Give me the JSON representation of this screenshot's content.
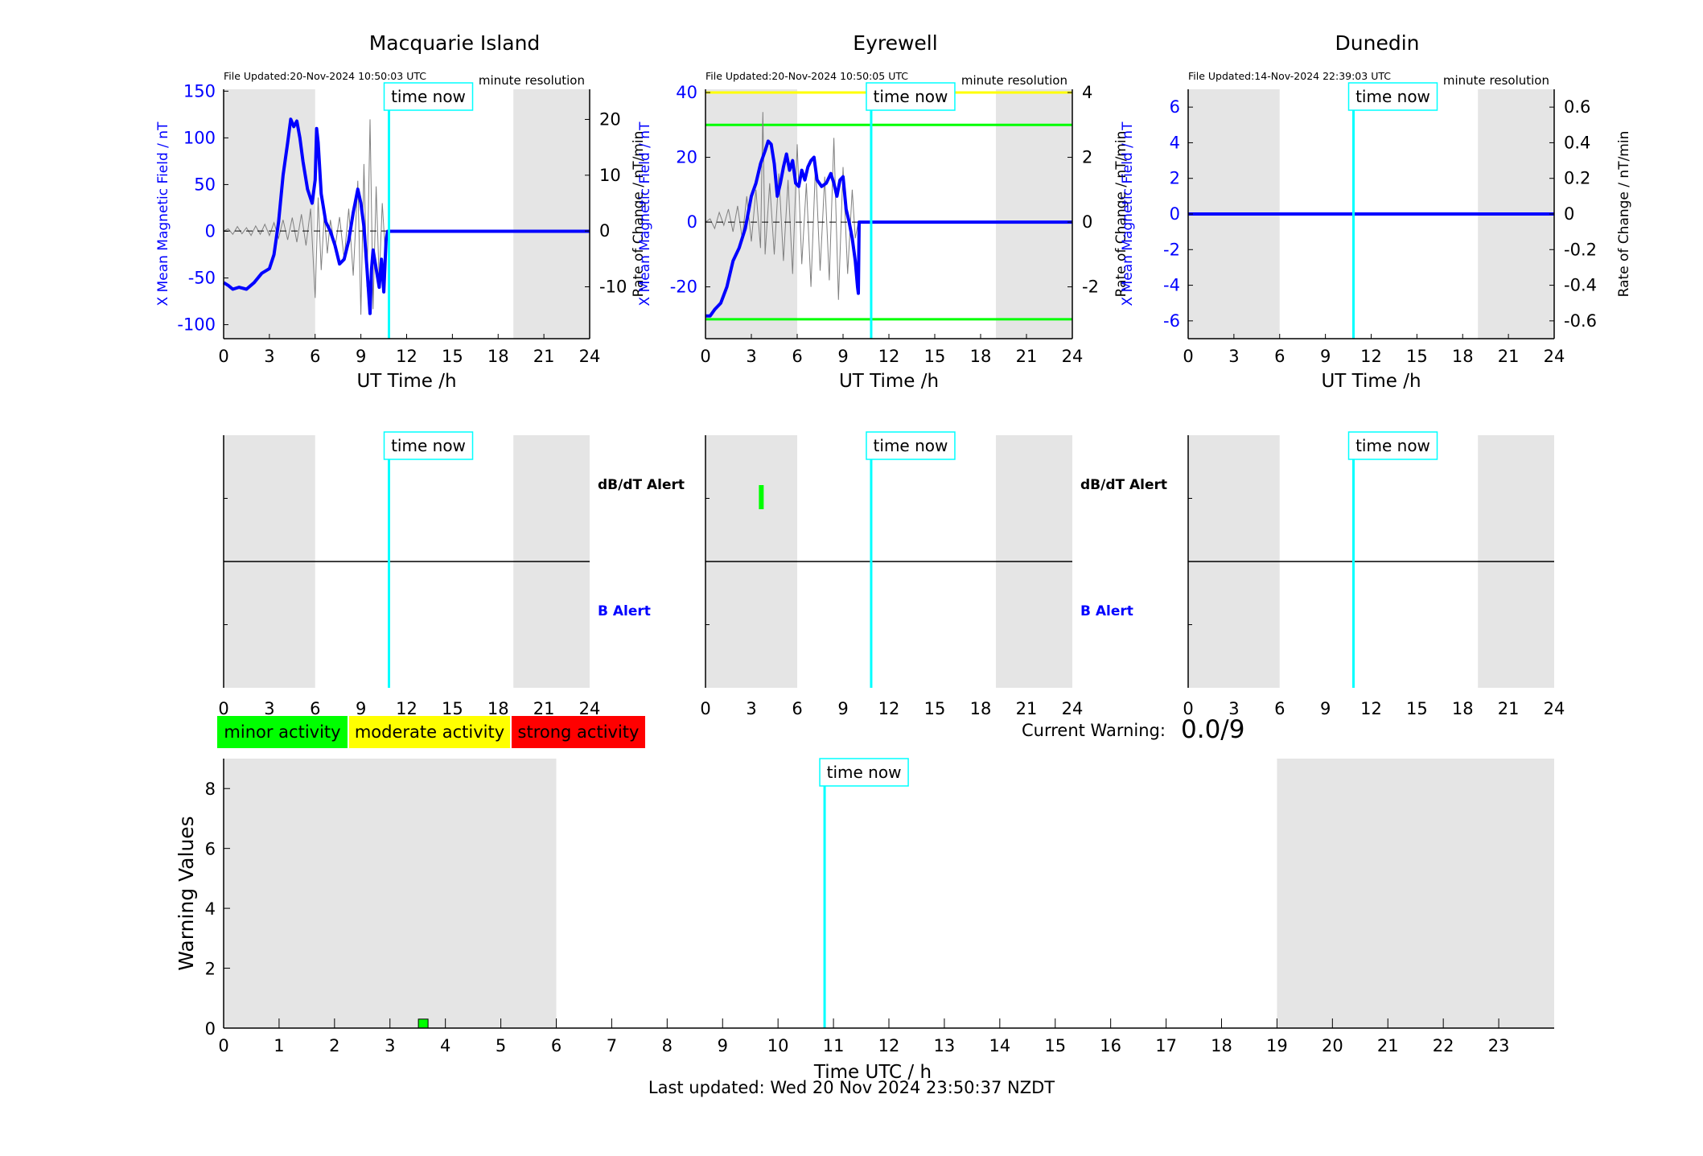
{
  "colors": {
    "night_shade": "#e5e5e5",
    "time_now_line": "#00ffff",
    "field_line": "#0000ff",
    "rate_line": "#808080",
    "minor": "#00ff00",
    "moderate": "#ffff00",
    "strong": "#ff0000",
    "label_blue": "#0000ff"
  },
  "common": {
    "time_now_label": "time now",
    "time_now_hour": 10.84,
    "night_shading_hours": [
      [
        0,
        6
      ],
      [
        19,
        24
      ]
    ],
    "x_axis_label": "UT Time /h",
    "x_ticks": [
      0,
      3,
      6,
      9,
      12,
      15,
      18,
      21,
      24
    ],
    "minute_resolution_label": "minute resolution",
    "left_axis_label": "X Mean Magnetic Field / nT",
    "right_axis_label": "Rate of Change / nT/min",
    "db_dt_alert_label": "dB/dT Alert",
    "b_alert_label": "B Alert"
  },
  "stations": [
    {
      "name": "Macquarie Island",
      "file_updated": "File Updated:20-Nov-2024 10:50:03 UTC",
      "left_range": [
        -115,
        152
      ],
      "left_ticks": [
        -100,
        -50,
        0,
        50,
        100,
        150
      ],
      "right_range": [
        -19.3,
        25.4
      ],
      "right_ticks": [
        -10,
        0,
        10,
        20
      ],
      "right_tick_labels": [
        "-10",
        "0",
        "10",
        "20"
      ],
      "thresholds": [],
      "field_series": [
        [
          0,
          -55
        ],
        [
          0.3,
          -58
        ],
        [
          0.6,
          -62
        ],
        [
          1,
          -60
        ],
        [
          1.5,
          -62
        ],
        [
          2,
          -55
        ],
        [
          2.5,
          -45
        ],
        [
          3,
          -40
        ],
        [
          3.3,
          -25
        ],
        [
          3.6,
          10
        ],
        [
          3.9,
          60
        ],
        [
          4.2,
          95
        ],
        [
          4.4,
          120
        ],
        [
          4.6,
          112
        ],
        [
          4.8,
          118
        ],
        [
          5,
          100
        ],
        [
          5.2,
          75
        ],
        [
          5.5,
          45
        ],
        [
          5.8,
          30
        ],
        [
          6,
          55
        ],
        [
          6.1,
          110
        ],
        [
          6.2,
          95
        ],
        [
          6.4,
          40
        ],
        [
          6.7,
          10
        ],
        [
          7,
          0
        ],
        [
          7.3,
          -15
        ],
        [
          7.6,
          -35
        ],
        [
          7.9,
          -30
        ],
        [
          8.2,
          -10
        ],
        [
          8.5,
          20
        ],
        [
          8.8,
          45
        ],
        [
          9,
          30
        ],
        [
          9.2,
          5
        ],
        [
          9.4,
          -40
        ],
        [
          9.6,
          -88
        ],
        [
          9.7,
          -40
        ],
        [
          9.8,
          -20
        ],
        [
          10,
          -40
        ],
        [
          10.2,
          -60
        ],
        [
          10.35,
          -30
        ],
        [
          10.5,
          -65
        ],
        [
          10.65,
          -10
        ],
        [
          10.75,
          0
        ],
        [
          11,
          0
        ],
        [
          24,
          0
        ]
      ],
      "rate_series": [
        [
          0,
          0.0
        ],
        [
          0.3,
          0.4
        ],
        [
          0.6,
          -0.6
        ],
        [
          0.9,
          0.8
        ],
        [
          1.2,
          -0.5
        ],
        [
          1.5,
          0.6
        ],
        [
          1.8,
          -0.8
        ],
        [
          2.1,
          0.9
        ],
        [
          2.4,
          -0.6
        ],
        [
          2.7,
          1.2
        ],
        [
          3,
          -0.8
        ],
        [
          3.3,
          1.5
        ],
        [
          3.6,
          -1.3
        ],
        [
          3.9,
          2.0
        ],
        [
          4.2,
          -1.6
        ],
        [
          4.5,
          2.4
        ],
        [
          4.8,
          -2.0
        ],
        [
          5.1,
          3.0
        ],
        [
          5.4,
          -2.6
        ],
        [
          5.7,
          4.0
        ],
        [
          6,
          -12.0
        ],
        [
          6.2,
          6.0
        ],
        [
          6.4,
          -7.0
        ],
        [
          6.6,
          3.0
        ],
        [
          6.8,
          -4.0
        ],
        [
          7,
          2.0
        ],
        [
          7.3,
          -3.0
        ],
        [
          7.6,
          2.5
        ],
        [
          7.9,
          -5.0
        ],
        [
          8.2,
          4.0
        ],
        [
          8.5,
          -8.0
        ],
        [
          8.8,
          9.0
        ],
        [
          9,
          -15.0
        ],
        [
          9.2,
          12.0
        ],
        [
          9.4,
          -10.0
        ],
        [
          9.6,
          20.0
        ],
        [
          9.8,
          -14.0
        ],
        [
          10,
          8.0
        ],
        [
          10.2,
          -9.0
        ],
        [
          10.4,
          5.0
        ],
        [
          10.6,
          -4.0
        ],
        [
          10.75,
          0.0
        ]
      ],
      "alert_marks": []
    },
    {
      "name": "Eyrewell",
      "file_updated": "File Updated:20-Nov-2024 10:50:05 UTC",
      "left_range": [
        -36,
        41
      ],
      "left_ticks": [
        -20,
        0,
        20,
        40
      ],
      "right_range": [
        -3.6,
        4.1
      ],
      "right_ticks": [
        -2,
        0,
        2,
        4
      ],
      "right_tick_labels": [
        "-2",
        "0",
        "2",
        "4"
      ],
      "thresholds": [
        {
          "value": 40,
          "color": "#ffff00"
        },
        {
          "value": 30,
          "color": "#00ff00"
        },
        {
          "value": -30,
          "color": "#00ff00"
        }
      ],
      "field_series": [
        [
          0,
          -29
        ],
        [
          0.3,
          -29
        ],
        [
          0.6,
          -27
        ],
        [
          1,
          -25
        ],
        [
          1.4,
          -20
        ],
        [
          1.8,
          -12
        ],
        [
          2.2,
          -8
        ],
        [
          2.6,
          -2
        ],
        [
          3,
          8
        ],
        [
          3.3,
          12
        ],
        [
          3.6,
          18
        ],
        [
          3.9,
          22
        ],
        [
          4.1,
          25
        ],
        [
          4.3,
          24
        ],
        [
          4.5,
          18
        ],
        [
          4.7,
          8
        ],
        [
          4.9,
          12
        ],
        [
          5.1,
          17
        ],
        [
          5.3,
          21
        ],
        [
          5.5,
          16
        ],
        [
          5.7,
          19
        ],
        [
          5.9,
          12
        ],
        [
          6.1,
          11
        ],
        [
          6.3,
          16
        ],
        [
          6.5,
          13
        ],
        [
          6.7,
          17
        ],
        [
          6.9,
          19
        ],
        [
          7.1,
          20
        ],
        [
          7.3,
          13
        ],
        [
          7.6,
          11
        ],
        [
          7.9,
          12
        ],
        [
          8.2,
          15
        ],
        [
          8.4,
          12
        ],
        [
          8.6,
          8
        ],
        [
          8.8,
          13
        ],
        [
          9,
          14
        ],
        [
          9.2,
          4
        ],
        [
          9.4,
          0
        ],
        [
          9.6,
          -5
        ],
        [
          9.8,
          -12
        ],
        [
          9.95,
          -20
        ],
        [
          10,
          -22
        ],
        [
          10.05,
          0
        ],
        [
          11,
          0
        ],
        [
          24,
          0
        ]
      ],
      "rate_series": [
        [
          0,
          0.0
        ],
        [
          0.3,
          0.1
        ],
        [
          0.6,
          -0.2
        ],
        [
          0.9,
          0.3
        ],
        [
          1.2,
          -0.1
        ],
        [
          1.5,
          0.4
        ],
        [
          1.8,
          -0.3
        ],
        [
          2.1,
          0.5
        ],
        [
          2.4,
          -0.5
        ],
        [
          2.7,
          0.8
        ],
        [
          3,
          -0.6
        ],
        [
          3.3,
          1.0
        ],
        [
          3.6,
          -0.8
        ],
        [
          3.75,
          3.4
        ],
        [
          3.9,
          -1.0
        ],
        [
          4.2,
          1.2
        ],
        [
          4.5,
          -1.0
        ],
        [
          4.8,
          1.5
        ],
        [
          5.1,
          -1.2
        ],
        [
          5.4,
          1.3
        ],
        [
          5.7,
          -1.6
        ],
        [
          6,
          2.4
        ],
        [
          6.3,
          -1.3
        ],
        [
          6.6,
          1.2
        ],
        [
          6.9,
          -2.0
        ],
        [
          7.2,
          1.8
        ],
        [
          7.5,
          -1.5
        ],
        [
          7.8,
          1.4
        ],
        [
          8.1,
          -1.8
        ],
        [
          8.4,
          2.6
        ],
        [
          8.7,
          -2.4
        ],
        [
          9,
          1.7
        ],
        [
          9.3,
          -1.6
        ],
        [
          9.6,
          1.0
        ],
        [
          9.8,
          -0.5
        ],
        [
          10,
          0.0
        ]
      ],
      "alert_marks": [
        {
          "hour": 3.65,
          "row": "dbdt"
        }
      ]
    },
    {
      "name": "Dunedin",
      "file_updated": "File Updated:14-Nov-2024 22:39:03 UTC",
      "left_range": [
        -7,
        7
      ],
      "left_ticks": [
        -6,
        -4,
        -2,
        0,
        2,
        4,
        6
      ],
      "right_range": [
        -0.7,
        0.7
      ],
      "right_ticks": [
        -0.6,
        -0.4,
        -0.2,
        0,
        0.2,
        0.4,
        0.6
      ],
      "right_tick_labels": [
        "-0.6",
        "-0.4",
        "-0.2",
        "0",
        "0.2",
        "0.4",
        "0.6"
      ],
      "thresholds": [],
      "field_series": [
        [
          0,
          0
        ],
        [
          24,
          0
        ]
      ],
      "rate_series": [],
      "alert_marks": []
    }
  ],
  "legend": {
    "minor": "minor activity",
    "moderate": "moderate activity",
    "strong": "strong activity"
  },
  "current_warning": {
    "label": "Current Warning:",
    "value": "0.0/9"
  },
  "warning_chart": {
    "y_label": "Warning Values",
    "x_label": "Time UTC / h",
    "y_range": [
      0,
      9
    ],
    "y_ticks": [
      0,
      2,
      4,
      6,
      8
    ],
    "x_range": [
      0,
      24
    ],
    "x_ticks": [
      0,
      1,
      2,
      3,
      4,
      5,
      6,
      7,
      8,
      9,
      10,
      11,
      12,
      13,
      14,
      15,
      16,
      17,
      18,
      19,
      20,
      21,
      22,
      23
    ],
    "bars": [
      {
        "hour": 3.6,
        "value": 0.3
      }
    ]
  },
  "footer": "Last updated: Wed 20 Nov 2024 23:50:37 NZDT",
  "chart_data": [
    {
      "type": "line",
      "title": "Macquarie Island",
      "xlabel": "UT Time /h",
      "ylabel": "X Mean Magnetic Field / nT",
      "ylabel_right": "Rate of Change / nT/min",
      "xlim": [
        0,
        24
      ],
      "ylim": [
        -115,
        152
      ],
      "series": [
        {
          "name": "X Mean Magnetic Field",
          "ref": "stations.0.field_series"
        },
        {
          "name": "Rate of Change",
          "ref": "stations.0.rate_series"
        }
      ]
    },
    {
      "type": "line",
      "title": "Eyrewell",
      "xlabel": "UT Time /h",
      "ylabel": "X Mean Magnetic Field / nT",
      "ylabel_right": "Rate of Change / nT/min",
      "xlim": [
        0,
        24
      ],
      "ylim": [
        -36,
        41
      ],
      "series": [
        {
          "name": "X Mean Magnetic Field",
          "ref": "stations.1.field_series"
        },
        {
          "name": "Rate of Change",
          "ref": "stations.1.rate_series"
        }
      ]
    },
    {
      "type": "line",
      "title": "Dunedin",
      "xlabel": "UT Time /h",
      "ylabel": "X Mean Magnetic Field / nT",
      "ylabel_right": "Rate of Change / nT/min",
      "xlim": [
        0,
        24
      ],
      "ylim": [
        -7,
        7
      ],
      "series": [
        {
          "name": "X Mean Magnetic Field",
          "values": [
            0,
            0
          ],
          "x": [
            0,
            24
          ]
        }
      ]
    },
    {
      "type": "bar",
      "title": "",
      "xlabel": "Time UTC / h",
      "ylabel": "Warning Values",
      "xlim": [
        0,
        24
      ],
      "ylim": [
        0,
        9
      ],
      "x": [
        3.6
      ],
      "values": [
        0.3
      ]
    }
  ]
}
